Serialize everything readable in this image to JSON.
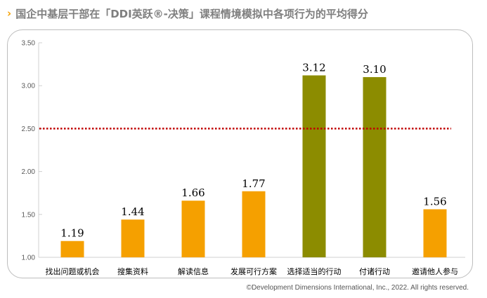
{
  "header": {
    "chevron": "›",
    "title": "国企中基层干部在「DDI英跃®-决策」课程情境模拟中各项行为的平均得分"
  },
  "footer": {
    "copyright": "©Development Dimensions International, Inc., 2022. All rights reserved."
  },
  "colors": {
    "orange": "#f5a000",
    "olive": "#8c8c00",
    "reference_line": "#c00000",
    "title": "#7f7f7f",
    "chevron": "#f5a000"
  },
  "chart_data": {
    "type": "bar",
    "title": "",
    "xlabel": "",
    "ylabel": "",
    "categories": [
      "找出问题或机会",
      "搜集资料",
      "解读信息",
      "发展可行方案",
      "选择适当的行动",
      "付诸行动",
      "邀请他人参与"
    ],
    "values": [
      1.19,
      1.44,
      1.66,
      1.77,
      3.12,
      3.1,
      1.56
    ],
    "value_labels": [
      "1.19",
      "1.44",
      "1.66",
      "1.77",
      "3.12",
      "3.10",
      "1.56"
    ],
    "bar_colors": [
      "#f5a000",
      "#f5a000",
      "#f5a000",
      "#f5a000",
      "#8c8c00",
      "#8c8c00",
      "#f5a000"
    ],
    "ylim": [
      1.0,
      3.5
    ],
    "yticks": [
      "1.00",
      "1.50",
      "2.00",
      "2.50",
      "3.00",
      "3.50"
    ],
    "reference_line": 2.5,
    "grid": false,
    "legend": "none"
  }
}
